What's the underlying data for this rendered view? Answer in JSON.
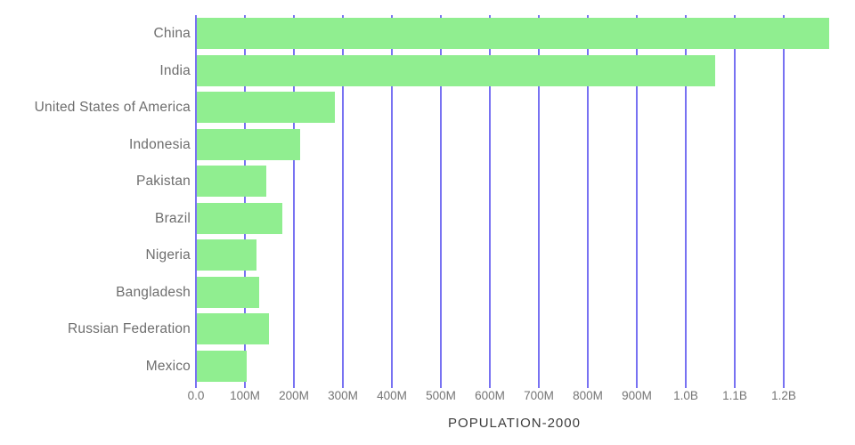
{
  "chart_data": {
    "type": "bar",
    "orientation": "horizontal",
    "title": "",
    "xlabel": "POPULATION-2000",
    "ylabel": "",
    "categories": [
      "China",
      "India",
      "United States of America",
      "Indonesia",
      "Pakistan",
      "Brazil",
      "Nigeria",
      "Bangladesh",
      "Russian Federation",
      "Mexico"
    ],
    "values": [
      1290000000,
      1058000000,
      282000000,
      211000000,
      142000000,
      175000000,
      122000000,
      128000000,
      147000000,
      101000000
    ],
    "xlim": [
      0,
      1300000000
    ],
    "xticks": [
      {
        "label": "0.0",
        "value": 0
      },
      {
        "label": "100M",
        "value": 100000000
      },
      {
        "label": "200M",
        "value": 200000000
      },
      {
        "label": "300M",
        "value": 300000000
      },
      {
        "label": "400M",
        "value": 400000000
      },
      {
        "label": "500M",
        "value": 500000000
      },
      {
        "label": "600M",
        "value": 600000000
      },
      {
        "label": "700M",
        "value": 700000000
      },
      {
        "label": "800M",
        "value": 800000000
      },
      {
        "label": "900M",
        "value": 900000000
      },
      {
        "label": "1.0B",
        "value": 1000000000
      },
      {
        "label": "1.1B",
        "value": 1100000000
      },
      {
        "label": "1.2B",
        "value": 1200000000
      }
    ],
    "grid": "vertical",
    "legend": "none",
    "colors": {
      "bar": "#90ee90",
      "gridline": "#7872f2",
      "axis_line": "#7872f2",
      "y_label_text": "#6e6e6e",
      "x_tick_text": "#757575",
      "axis_title_text": "#3d3d3d",
      "background": "#ffffff"
    }
  }
}
